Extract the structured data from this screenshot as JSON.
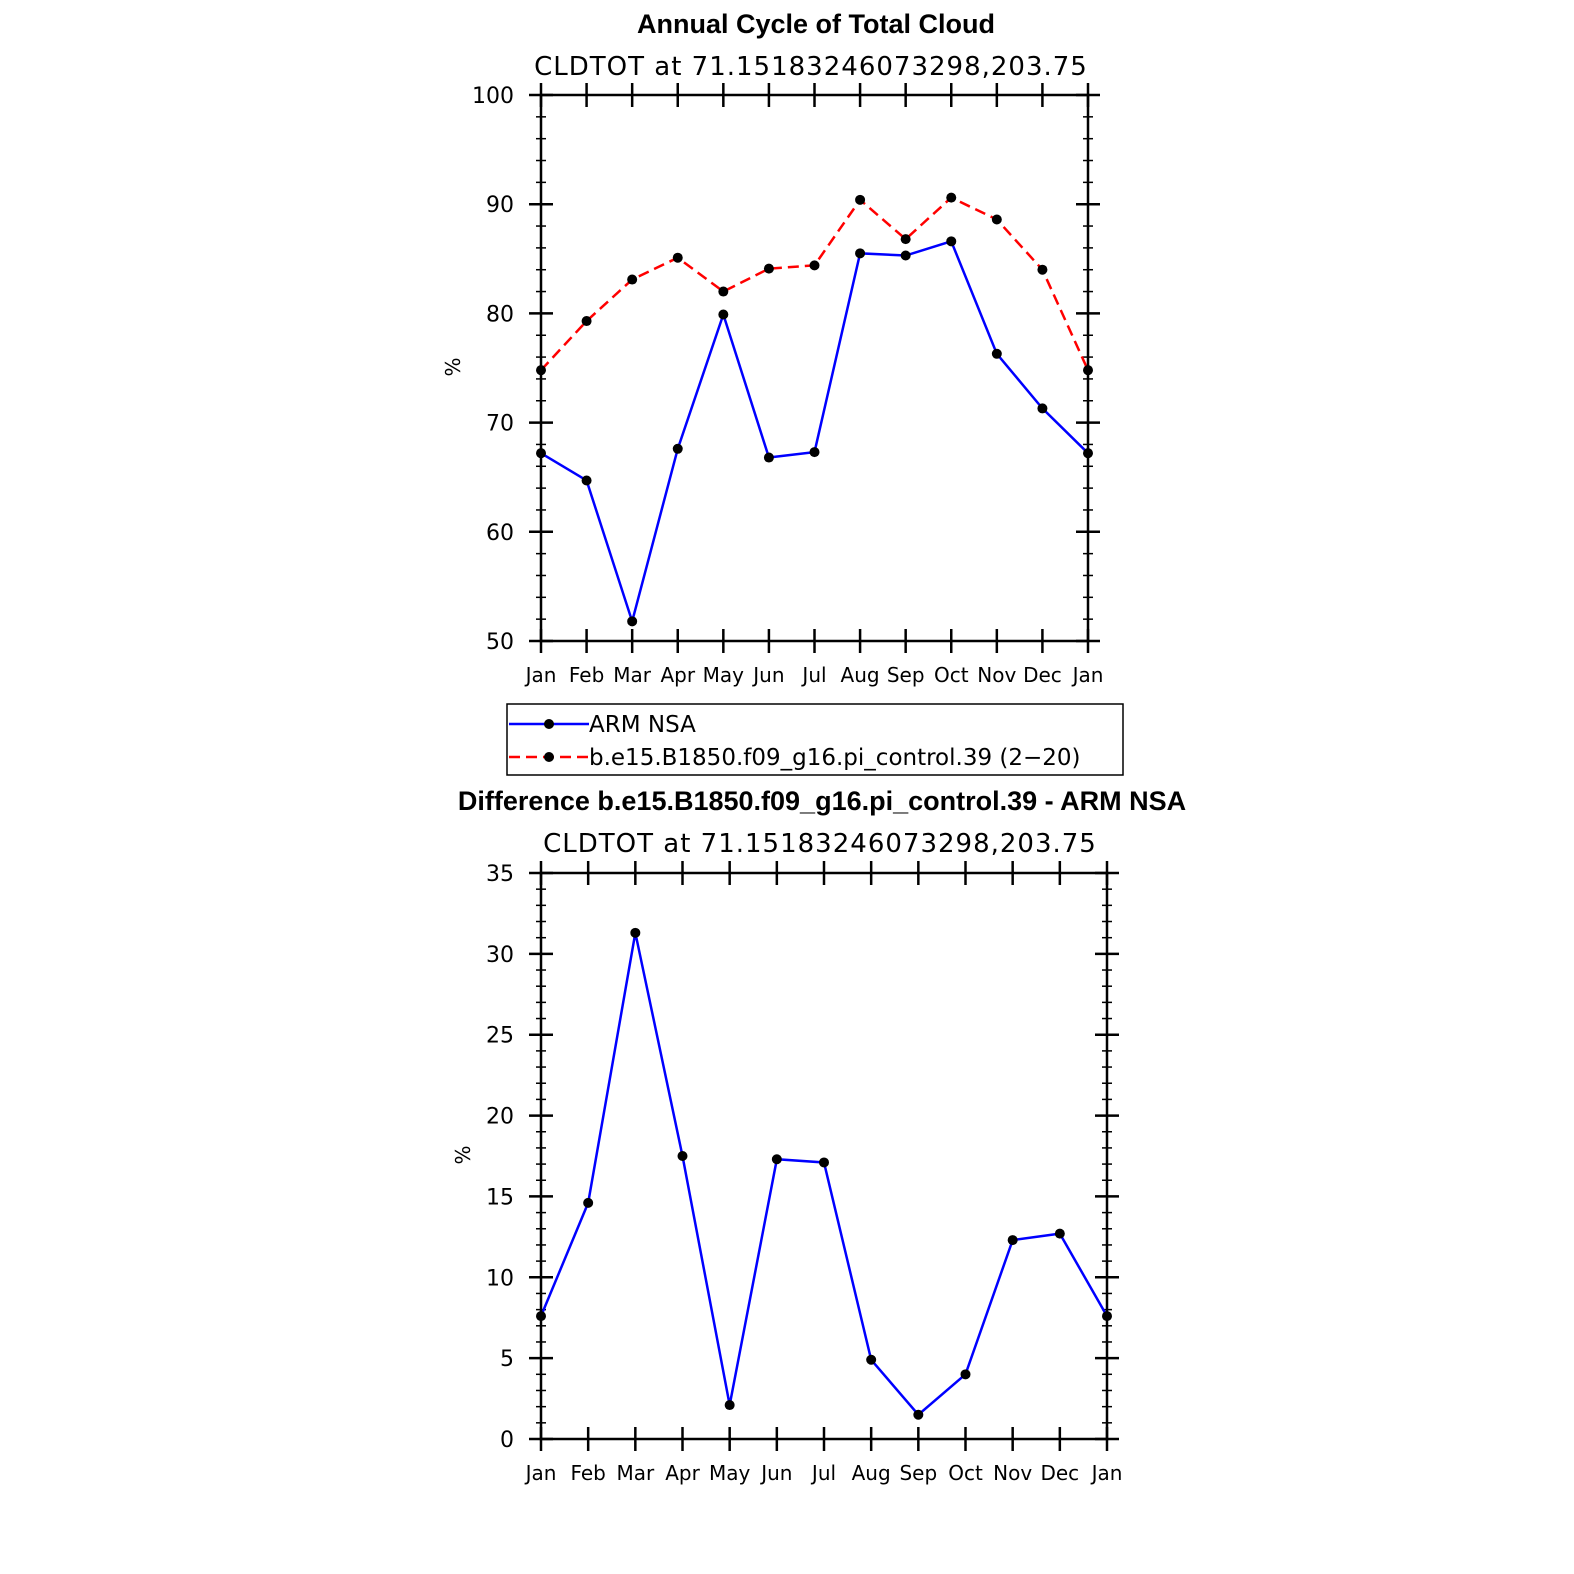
{
  "chart_data": [
    {
      "type": "line",
      "title": "Annual Cycle of Total Cloud",
      "subtitle": "CLDTOT at 71.15183246073298,203.75",
      "ylabel": "%",
      "xlabel": "",
      "categories": [
        "Jan",
        "Feb",
        "Mar",
        "Apr",
        "May",
        "Jun",
        "Jul",
        "Aug",
        "Sep",
        "Oct",
        "Nov",
        "Dec",
        "Jan"
      ],
      "ylim": [
        50,
        100
      ],
      "yticks": [
        "50",
        "60",
        "70",
        "80",
        "90",
        "100"
      ],
      "grid": false,
      "series": [
        {
          "name": "ARM NSA",
          "color": "#0000ff",
          "dash": "solid",
          "values": [
            67.2,
            64.7,
            51.8,
            67.6,
            79.9,
            66.8,
            67.3,
            85.5,
            85.3,
            86.6,
            76.3,
            71.3,
            67.2
          ]
        },
        {
          "name": "b.e15.B1850.f09_g16.pi_control.39 (2−20)",
          "color": "#ff0000",
          "dash": "dashed",
          "values": [
            74.8,
            79.3,
            83.1,
            85.1,
            82.0,
            84.1,
            84.4,
            90.4,
            86.8,
            90.6,
            88.6,
            84.0,
            74.8
          ]
        }
      ],
      "legend": "below"
    },
    {
      "type": "line",
      "title": "Difference b.e15.B1850.f09_g16.pi_control.39 - ARM NSA",
      "subtitle": "CLDTOT at 71.15183246073298,203.75",
      "ylabel": "%",
      "xlabel": "",
      "categories": [
        "Jan",
        "Feb",
        "Mar",
        "Apr",
        "May",
        "Jun",
        "Jul",
        "Aug",
        "Sep",
        "Oct",
        "Nov",
        "Dec",
        "Jan"
      ],
      "ylim": [
        0,
        35
      ],
      "yticks": [
        "0",
        "5",
        "10",
        "15",
        "20",
        "25",
        "30",
        "35"
      ],
      "grid": false,
      "series": [
        {
          "color": "#0000ff",
          "dash": "solid",
          "values": [
            7.6,
            14.6,
            31.3,
            17.5,
            2.1,
            17.3,
            17.1,
            4.9,
            1.5,
            4.0,
            12.3,
            12.7,
            7.6
          ]
        }
      ]
    }
  ],
  "colors": {
    "marker": "#000000",
    "axis": "#000000"
  }
}
